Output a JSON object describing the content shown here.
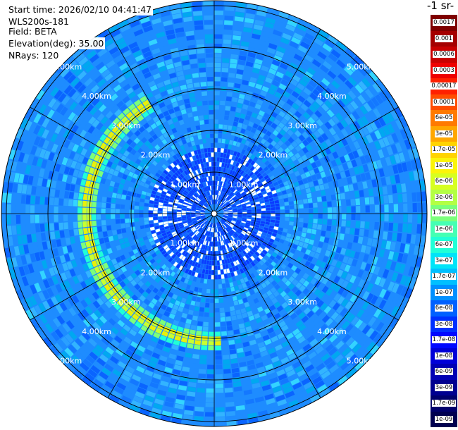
{
  "info": {
    "start_time": "Start time: 2026/02/10 04:41:47",
    "instrument": "WLS200s-181",
    "field": "Field: BETA",
    "elevation": "Elevation(deg): 35.00",
    "nrays": "NRays: 120"
  },
  "colorbar": {
    "title": "-1 sr-",
    "labels": [
      "0.0017",
      "0.001",
      "0.0006",
      "0.0003",
      "0.00017",
      "0.0001",
      "6e-05",
      "3e-05",
      "1.7e-05",
      "1e-05",
      "6e-06",
      "3e-06",
      "1.7e-06",
      "1e-06",
      "6e-07",
      "3e-07",
      "1.7e-07",
      "1e-07",
      "6e-08",
      "3e-08",
      "1.7e-08",
      "1e-08",
      "6e-09",
      "3e-09",
      "1.7e-09",
      "1e-09"
    ],
    "colors": [
      "#7f0000",
      "#a40000",
      "#c80000",
      "#ee0000",
      "#ff2000",
      "#ff4d00",
      "#ff7a00",
      "#ffa700",
      "#ffd400",
      "#fbf40a",
      "#d7ff20",
      "#b3ff44",
      "#7bff7b",
      "#44ffb3",
      "#20ffd7",
      "#00e4f8",
      "#00c0ff",
      "#0090ff",
      "#0060ff",
      "#0030ff",
      "#0008ff",
      "#0000d8",
      "#0000b4",
      "#000090",
      "#00006c",
      "#000050"
    ]
  },
  "rings": [
    {
      "label": "1.00km"
    },
    {
      "label": "2.00km"
    },
    {
      "label": "3.00km"
    },
    {
      "label": "4.00km"
    },
    {
      "label": "5.00km"
    }
  ]
}
